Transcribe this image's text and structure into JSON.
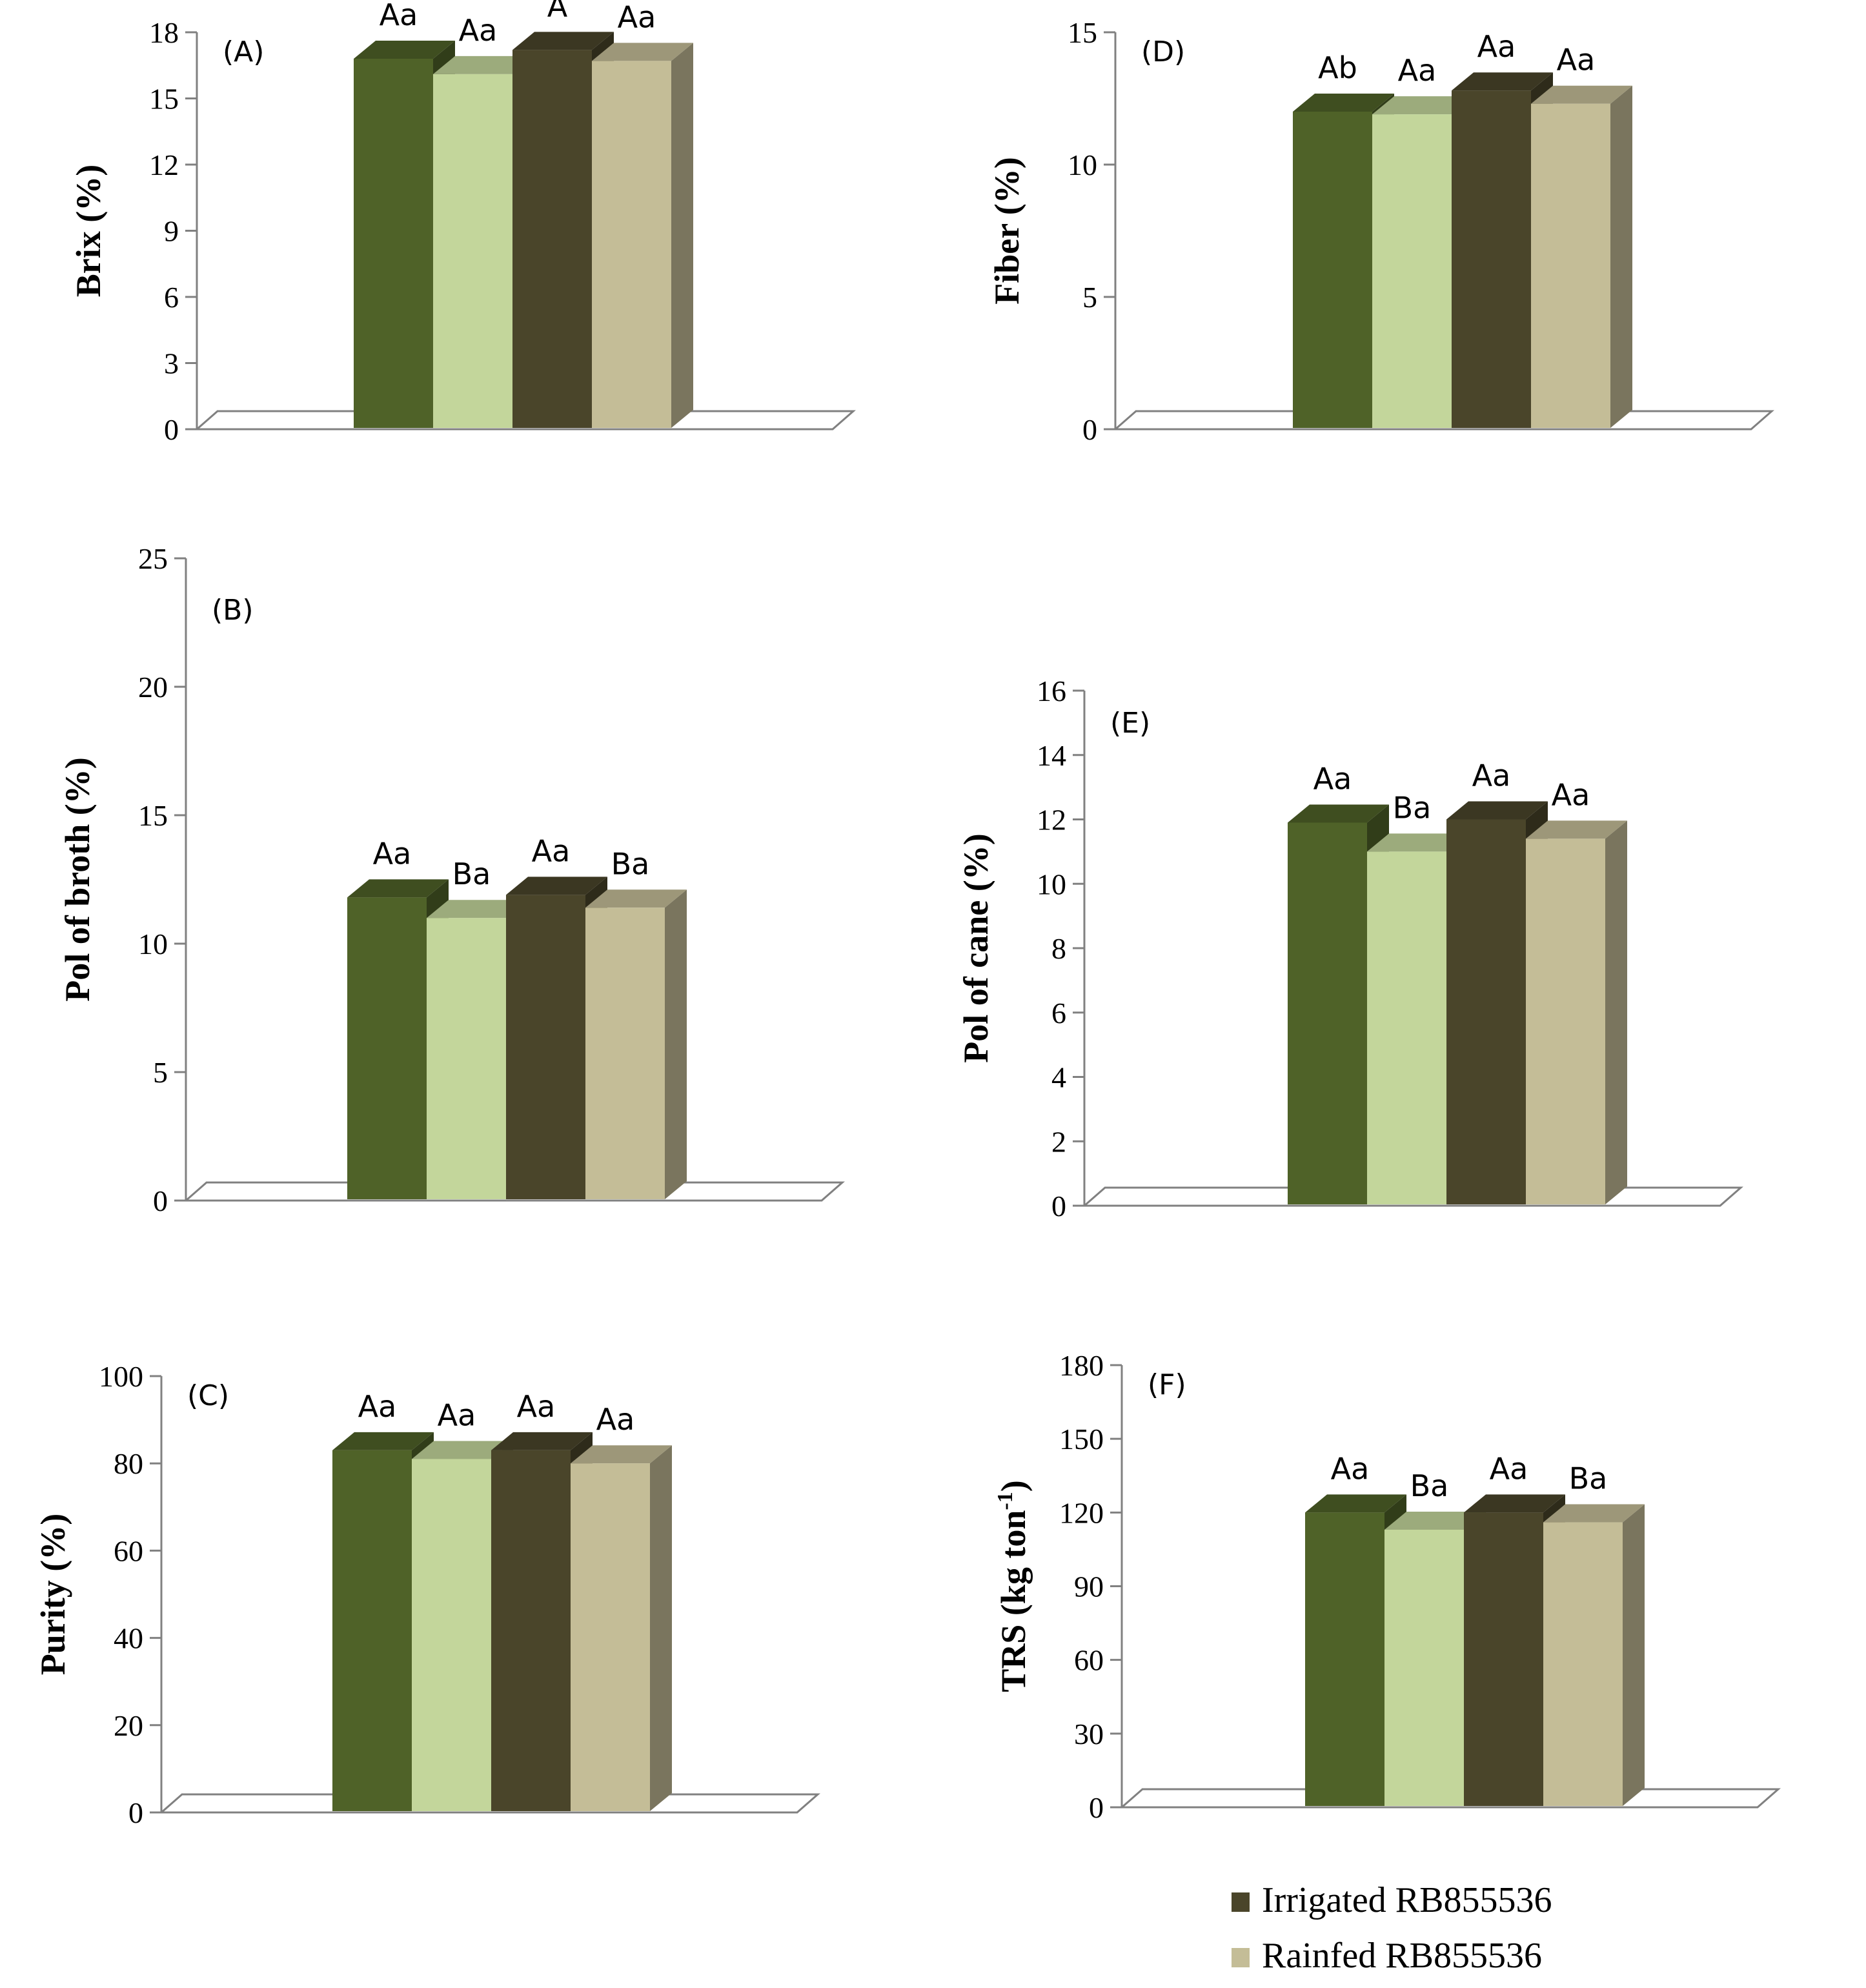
{
  "series_colors": {
    "Irrigated RB855536": "#4f6228",
    "Rainfed RB855536": "#c3d69b",
    "series3": "#4a452a",
    "series4": "#c4bd97"
  },
  "legend": {
    "items": [
      {
        "name": "Irrigated RB855536",
        "color": "#4a452a"
      },
      {
        "name": "Rainfed RB855536",
        "color": "#c4bd97"
      }
    ]
  },
  "chart_data": [
    {
      "type": "bar",
      "panel_label": "(A)",
      "ylabel": "Brix (%)",
      "ylabel_sup": "",
      "ylim": [
        0,
        18
      ],
      "yticks": [
        0,
        3,
        6,
        9,
        12,
        15,
        18
      ],
      "values": [
        16.8,
        16.1,
        17.2,
        16.7
      ],
      "labels": [
        "Aa",
        "Aa",
        "A",
        "Aa"
      ]
    },
    {
      "type": "bar",
      "panel_label": "(B)",
      "ylabel": "Pol of broth (%)",
      "ylabel_sup": "",
      "ylim": [
        0,
        25
      ],
      "yticks": [
        0,
        5,
        10,
        15,
        20,
        25
      ],
      "values": [
        11.8,
        11.0,
        11.9,
        11.4
      ],
      "labels": [
        "Aa",
        "Ba",
        "Aa",
        "Ba"
      ]
    },
    {
      "type": "bar",
      "panel_label": "(C)",
      "ylabel": "Purity (%)",
      "ylabel_sup": "",
      "ylim": [
        0,
        100
      ],
      "yticks": [
        0,
        20,
        40,
        60,
        80,
        100
      ],
      "values": [
        83,
        81,
        83,
        80
      ],
      "labels": [
        "Aa",
        "Aa",
        "Aa",
        "Aa"
      ]
    },
    {
      "type": "bar",
      "panel_label": "(D)",
      "ylabel": "Fiber (%)",
      "ylabel_sup": "",
      "ylim": [
        0,
        15
      ],
      "yticks": [
        0,
        5,
        10,
        15
      ],
      "values": [
        12.0,
        11.9,
        12.8,
        12.3
      ],
      "labels": [
        "Ab",
        "Aa",
        "Aa",
        "Aa"
      ]
    },
    {
      "type": "bar",
      "panel_label": "(E)",
      "ylabel": "Pol of cane (%)",
      "ylabel_sup": "",
      "ylim": [
        0,
        16
      ],
      "yticks": [
        0,
        2,
        4,
        6,
        8,
        10,
        12,
        14,
        16
      ],
      "values": [
        11.9,
        11.0,
        12.0,
        11.4
      ],
      "labels": [
        "Aa",
        "Ba",
        "Aa",
        "Aa"
      ]
    },
    {
      "type": "bar",
      "panel_label": "(F)",
      "ylabel": "TRS (kg ton",
      "ylabel_sup": "-1",
      "ylabel_end": ")",
      "ylim": [
        0,
        180
      ],
      "yticks": [
        0,
        30,
        60,
        90,
        120,
        150,
        180
      ],
      "values": [
        120,
        113,
        120,
        116
      ],
      "labels": [
        "Aa",
        "Ba",
        "Aa",
        "Ba"
      ]
    }
  ]
}
